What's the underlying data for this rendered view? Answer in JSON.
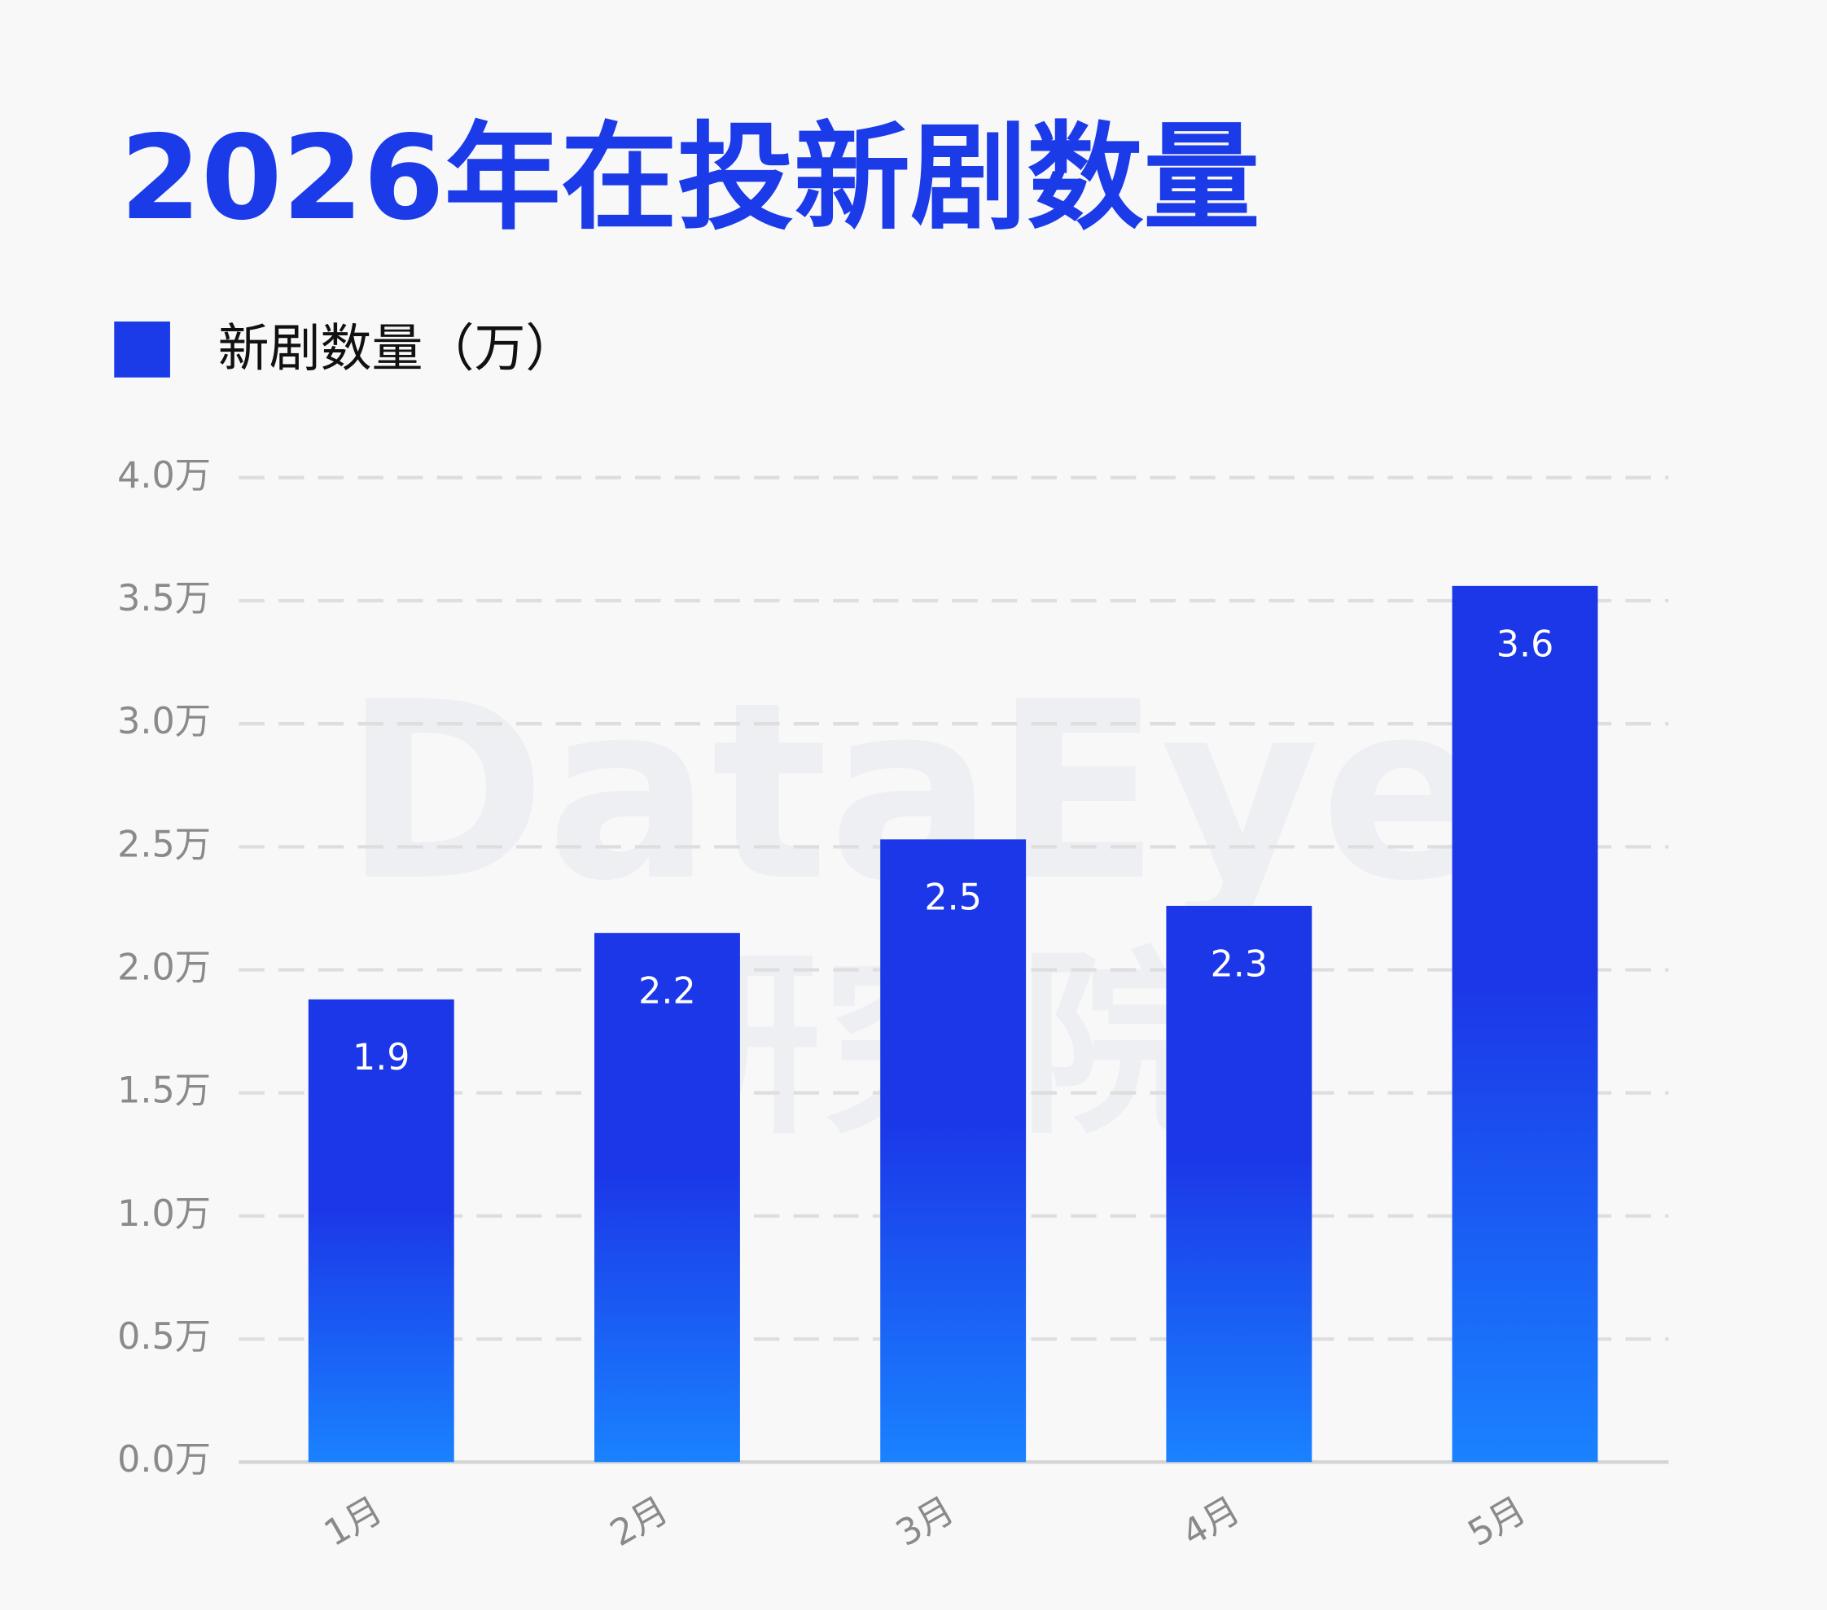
{
  "chart_data": {
    "type": "bar",
    "title": "2026年在投新剧数量",
    "watermark": [
      "DataEye",
      "研究院"
    ],
    "categories": [
      "1月",
      "2月",
      "3月",
      "4月",
      "5月"
    ],
    "series": [
      {
        "name": "新剧数量（万）",
        "color": "#1b3be8",
        "values": [
          1.88,
          2.15,
          2.53,
          2.26,
          3.56
        ],
        "value_labels": [
          "1.9",
          "2.2",
          "2.5",
          "2.3",
          "3.6"
        ]
      }
    ],
    "ylim": [
      0,
      4
    ],
    "yticks": [
      {
        "value": 0,
        "label": "0.0万"
      },
      {
        "value": 0.5,
        "label": "0.5万"
      },
      {
        "value": 1,
        "label": "1.0万"
      },
      {
        "value": 1.5,
        "label": "1.5万"
      },
      {
        "value": 2,
        "label": "2.0万"
      },
      {
        "value": 2.5,
        "label": "2.5万"
      },
      {
        "value": 3,
        "label": "3.0万"
      },
      {
        "value": 3.5,
        "label": "3.5万"
      },
      {
        "value": 4,
        "label": "4.0万"
      }
    ],
    "grid": true
  }
}
